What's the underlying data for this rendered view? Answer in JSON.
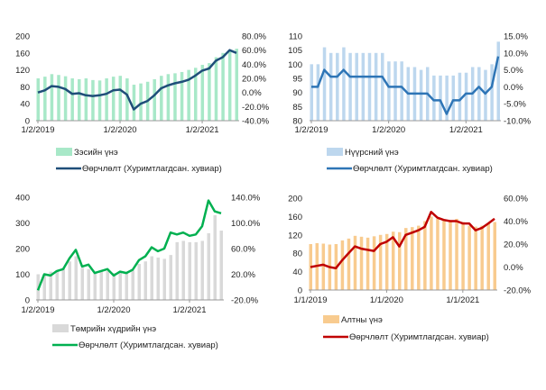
{
  "chart_data": [
    {
      "type": "bar+line",
      "bar_color": "#a8e8c8",
      "line_color": "#1f4e79",
      "left_ticks": [
        "0",
        "40",
        "80",
        "120",
        "160",
        "200"
      ],
      "left_range": [
        0,
        200
      ],
      "right_ticks": [
        "-40.0%",
        "-20.0%",
        "0.0%",
        "20.0%",
        "40.0%",
        "60.0%",
        "80.0%"
      ],
      "right_range": [
        -40,
        80
      ],
      "x_ticks": [
        "1/2/2019",
        "1/2/2020",
        "1/2/2021"
      ],
      "bar_label": "Зэсийн үнэ",
      "line_label": "Өөрчлөлт (Хуримтлагдсан. хувиар)",
      "bars": [
        100,
        104,
        110,
        108,
        105,
        100,
        98,
        100,
        96,
        95,
        100,
        104,
        106,
        100,
        85,
        88,
        92,
        98,
        106,
        110,
        112,
        115,
        120,
        125,
        132,
        136,
        150,
        160,
        165,
        170
      ],
      "line": [
        0,
        3,
        9,
        8,
        5,
        -2,
        -1,
        -4,
        -5,
        -4,
        -2,
        3,
        4,
        -3,
        -24,
        -16,
        -12,
        -4,
        6,
        10,
        13,
        15,
        18,
        24,
        31,
        34,
        45,
        50,
        60,
        56
      ]
    },
    {
      "type": "bar+line",
      "bar_color": "#bdd7ee",
      "line_color": "#2e75b6",
      "left_ticks": [
        "80",
        "85",
        "90",
        "95",
        "100",
        "105",
        "110"
      ],
      "left_range": [
        80,
        110
      ],
      "right_ticks": [
        "-10.0%",
        "-5.0%",
        "0.0%",
        "5.0%",
        "10.0%",
        "15.0%"
      ],
      "right_range": [
        -10,
        15
      ],
      "x_ticks": [
        "1/2/2019",
        "1/2/2020",
        "1/2/2021"
      ],
      "bar_label": "Нүүрсний үнэ",
      "line_label": "Өөрчлөлт (Хуримтлагдсан. хувиар)",
      "bars": [
        100,
        100,
        106,
        104,
        104,
        106,
        104,
        104,
        104,
        104,
        104,
        104,
        101,
        101,
        101,
        99,
        99,
        98,
        99,
        96,
        96,
        96,
        96,
        97,
        97,
        99,
        99,
        98,
        100,
        108
      ],
      "line": [
        0,
        0,
        5,
        3,
        3,
        5,
        3,
        3,
        3,
        3,
        3,
        3,
        0,
        0,
        0,
        -2,
        -2,
        -2,
        -2,
        -4,
        -4,
        -8,
        -4,
        -4,
        -2,
        -2,
        0,
        -2,
        0,
        9
      ]
    },
    {
      "type": "bar+line",
      "bar_color": "#d9d9d9",
      "line_color": "#00b050",
      "left_ticks": [
        "0",
        "100",
        "200",
        "300",
        "400"
      ],
      "left_range": [
        0,
        400
      ],
      "right_ticks": [
        "-20.0%",
        "20.0%",
        "60.0%",
        "100.0%",
        "140.0%"
      ],
      "right_range": [
        -20,
        140
      ],
      "x_ticks": [
        "1/2/2019",
        "1/2/2020",
        "1/2/2021"
      ],
      "bar_label": "Төмрийн хүдрийн үнэ",
      "line_label": "Өөрчлөлт (Хуримтлагдсан. хувиар)",
      "bars": [
        100,
        95,
        110,
        115,
        125,
        150,
        170,
        125,
        120,
        105,
        110,
        112,
        105,
        110,
        105,
        115,
        140,
        150,
        170,
        165,
        160,
        175,
        225,
        230,
        225,
        225,
        230,
        260,
        330,
        270
      ],
      "line": [
        -5,
        20,
        18,
        25,
        28,
        45,
        58,
        32,
        35,
        22,
        25,
        28,
        18,
        24,
        22,
        27,
        42,
        48,
        62,
        56,
        60,
        85,
        82,
        85,
        80,
        82,
        95,
        135,
        118,
        115
      ]
    },
    {
      "type": "bar+line",
      "bar_color": "#f8cb8f",
      "line_color": "#c00000",
      "left_ticks": [
        "0",
        "40",
        "80",
        "120",
        "160",
        "200"
      ],
      "left_range": [
        0,
        200
      ],
      "right_ticks": [
        "-20.0%",
        "0.0%",
        "20.0%",
        "40.0%",
        "60.0%"
      ],
      "right_range": [
        -20,
        60
      ],
      "x_ticks": [
        "1/1/2019",
        "1/1/2020",
        "1/1/2021"
      ],
      "bar_label": "Алтны үнэ",
      "line_label": "Өөрчлөлт (Хуримтлагдсан. хувиар)",
      "bars": [
        100,
        102,
        101,
        99,
        100,
        108,
        112,
        118,
        116,
        114,
        117,
        120,
        122,
        127,
        126,
        135,
        137,
        140,
        150,
        160,
        155,
        152,
        150,
        155,
        148,
        140,
        138,
        140,
        145,
        148
      ],
      "line": [
        0,
        1,
        2,
        0,
        -1,
        6,
        12,
        18,
        16,
        15,
        14,
        20,
        22,
        26,
        18,
        28,
        30,
        32,
        35,
        48,
        43,
        41,
        40,
        40,
        38,
        38,
        32,
        34,
        38,
        42
      ]
    }
  ]
}
